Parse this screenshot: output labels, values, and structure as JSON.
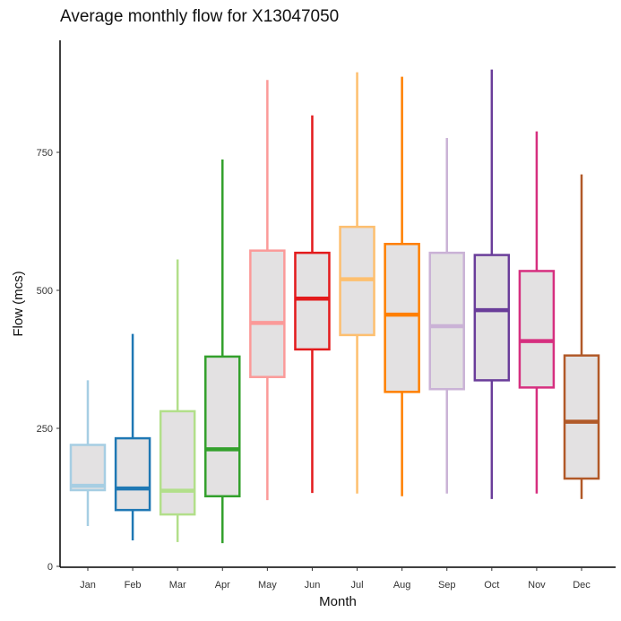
{
  "chart_data": {
    "type": "boxplot",
    "title": "Average monthly flow for X13047050",
    "xlabel": "Month",
    "ylabel": "Flow (mcs)",
    "ylim": [
      0,
      900
    ],
    "yticks": [
      0,
      250,
      500,
      750
    ],
    "grid": false,
    "legend": "none",
    "categories": [
      "Jan",
      "Feb",
      "Mar",
      "Apr",
      "May",
      "Jun",
      "Jul",
      "Aug",
      "Sep",
      "Oct",
      "Nov",
      "Dec"
    ],
    "colors": [
      "#a6cee3",
      "#1f78b4",
      "#b2df8a",
      "#33a02c",
      "#fb9a99",
      "#e31a1c",
      "#fdbf6f",
      "#ff7f00",
      "#cab2d6",
      "#6a3d9a",
      "#d62f7f",
      "#b15928"
    ],
    "box_fill": "#e3e1e2",
    "boxes": [
      {
        "min": 73,
        "q1": 138,
        "median": 146,
        "q3": 220,
        "max": 337
      },
      {
        "min": 47,
        "q1": 102,
        "median": 141,
        "q3": 232,
        "max": 421
      },
      {
        "min": 44,
        "q1": 94,
        "median": 137,
        "q3": 281,
        "max": 556
      },
      {
        "min": 42,
        "q1": 127,
        "median": 212,
        "q3": 380,
        "max": 737
      },
      {
        "min": 120,
        "q1": 343,
        "median": 441,
        "q3": 572,
        "max": 881
      },
      {
        "min": 133,
        "q1": 393,
        "median": 485,
        "q3": 568,
        "max": 817
      },
      {
        "min": 132,
        "q1": 419,
        "median": 520,
        "q3": 615,
        "max": 895
      },
      {
        "min": 127,
        "q1": 316,
        "median": 456,
        "q3": 584,
        "max": 887
      },
      {
        "min": 132,
        "q1": 321,
        "median": 435,
        "q3": 568,
        "max": 776
      },
      {
        "min": 122,
        "q1": 337,
        "median": 464,
        "q3": 564,
        "max": 900
      },
      {
        "min": 132,
        "q1": 324,
        "median": 408,
        "q3": 535,
        "max": 788
      },
      {
        "min": 122,
        "q1": 159,
        "median": 262,
        "q3": 382,
        "max": 710
      }
    ]
  }
}
